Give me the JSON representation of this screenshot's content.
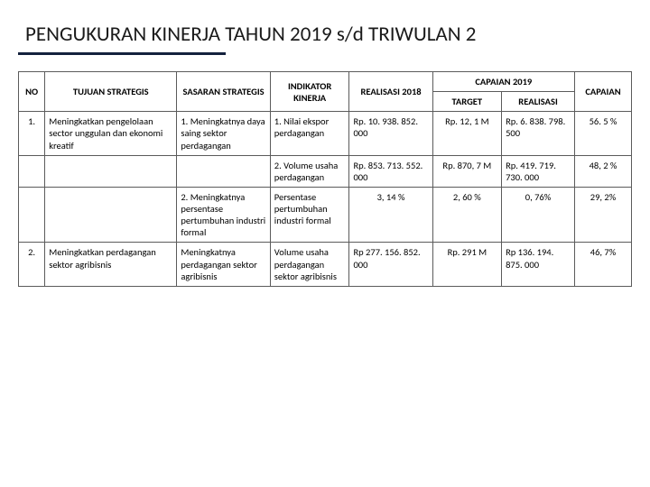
{
  "title": "PENGUKURAN KINERJA TAHUN 2019 s/d TRIWULAN 2",
  "headers": {
    "no": "NO",
    "tujuan": "TUJUAN STRATEGIS",
    "sasaran": "SASARAN STRATEGIS",
    "indikator": "INDIKATOR KINERJA",
    "real2018": "REALISASI 2018",
    "cap2019": "CAPAIAN 2019",
    "target": "TARGET",
    "realisasi": "REALISASI",
    "capaian": "CAPAIAN"
  },
  "rows": [
    {
      "no": "1.",
      "tujuan": "Meningkatkan pengelolaan sector unggulan dan ekonomi kreatif",
      "sasaran": "1. Meningkatnya daya saing sektor perdagangan",
      "indikator": "1. Nilai ekspor perdagangan",
      "real2018": "Rp. 10. 938. 852. 000",
      "target": "Rp. 12, 1 M",
      "realisasi": "Rp. 6. 838. 798. 500",
      "capaian": "56. 5 %"
    },
    {
      "no": "",
      "tujuan": "",
      "sasaran": "",
      "indikator": "2. Volume usaha perdagangan",
      "real2018": "Rp. 853. 713. 552. 000",
      "target": "Rp. 870, 7 M",
      "realisasi": "Rp. 419. 719. 730. 000",
      "capaian": "48, 2 %"
    },
    {
      "no": "",
      "tujuan": "",
      "sasaran": "2. Meningkatnya persentase pertumbuhan industri formal",
      "indikator": "Persentase pertumbuhan industri formal",
      "real2018": "3, 14 %",
      "target": "2, 60 %",
      "realisasi": "0, 76%",
      "capaian": "29, 2%"
    },
    {
      "no": "2.",
      "tujuan": "Meningkatkan perdagangan sektor agribisnis",
      "sasaran": "Meningkatnya perdagangan sektor agribisnis",
      "indikator": "Volume usaha perdagangan sektor agribisnis",
      "real2018": "Rp 277. 156. 852. 000",
      "target": "Rp. 291 M",
      "realisasi": "Rp 136. 194. 875. 000",
      "capaian": "46, 7%"
    }
  ],
  "style": {
    "title_color": "#1a1a1a",
    "underline_color": "#14213d",
    "border_color": "#5b5b5b",
    "background": "#ffffff",
    "font_family": "Calibri",
    "title_fontsize": 23,
    "cell_fontsize": 10.5
  }
}
